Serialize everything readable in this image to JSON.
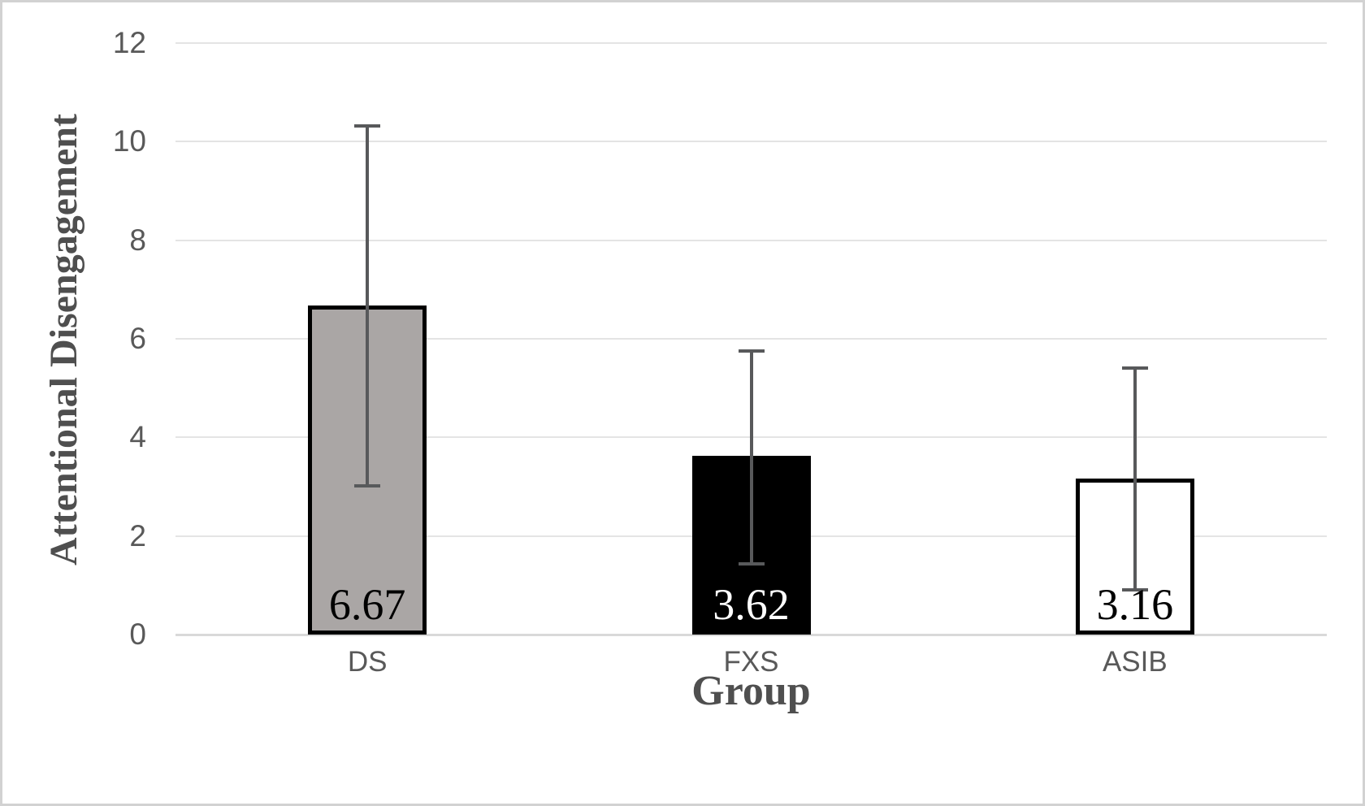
{
  "chart_data": {
    "type": "bar",
    "title": "",
    "xlabel": "Group",
    "ylabel": "Attentional Disengagement",
    "categories": [
      "DS",
      "FXS",
      "ASIB"
    ],
    "values": [
      6.67,
      3.62,
      3.16
    ],
    "data_labels": [
      "6.67",
      "3.62",
      "3.16"
    ],
    "error_upper": [
      10.32,
      5.75,
      5.41
    ],
    "error_lower": [
      3.02,
      1.43,
      0.91
    ],
    "ylim": [
      0,
      12
    ],
    "yticks": [
      0,
      2,
      4,
      6,
      8,
      10,
      12
    ],
    "grid": true,
    "legend": false,
    "bar_fills": [
      "#aaa6a5",
      "#000000",
      "#ffffff"
    ],
    "bar_border_color": "#000000",
    "label_colors": [
      "#000000",
      "#ffffff",
      "#000000"
    ]
  },
  "colors": {
    "gridline": "#e4e4e4",
    "axis_line": "#d9d9d9",
    "error_bar": "#58595b",
    "tick_label": "#595959",
    "axis_title": "#4f4f4f",
    "figure_border": "#d2d2d2",
    "background": "#ffffff"
  }
}
